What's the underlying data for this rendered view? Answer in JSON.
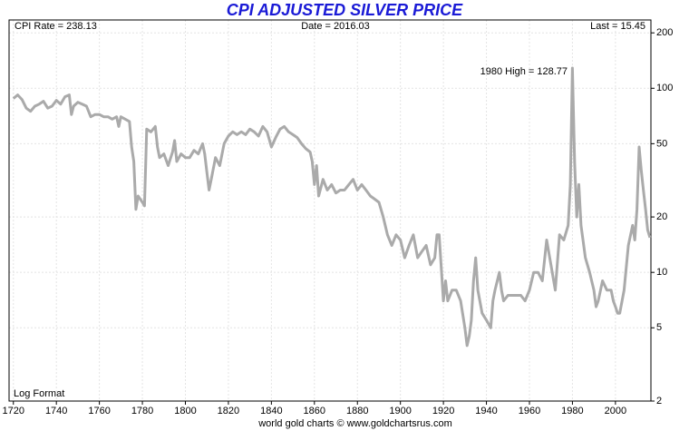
{
  "chart_data": {
    "type": "line",
    "title": "CPI ADJUSTED SILVER PRICE",
    "annotations": [
      "CPI Rate = 238.13",
      "Date = 2016.03",
      "Last = 15.45",
      "1980 High = 128.77",
      "Log Format",
      "world gold charts © www.goldchartsrus.com"
    ],
    "log_scale": true,
    "grid": true,
    "xlim": [
      1718,
      2016.5
    ],
    "xticks": [
      1720,
      1740,
      1760,
      1780,
      1800,
      1820,
      1840,
      1860,
      1880,
      1900,
      1920,
      1940,
      1960,
      1980,
      2000
    ],
    "ylim": [
      2,
      235
    ],
    "yticks": [
      2,
      5,
      10,
      20,
      50,
      100,
      200
    ],
    "series": [
      {
        "color": "#aaaaaa",
        "x": [
          1720,
          1722,
          1724,
          1726,
          1728,
          1730,
          1732,
          1734,
          1736,
          1738,
          1740,
          1742,
          1744,
          1746,
          1747,
          1748,
          1750,
          1752,
          1754,
          1756,
          1758,
          1760,
          1762,
          1764,
          1766,
          1768,
          1769,
          1770,
          1772,
          1774,
          1775,
          1776,
          1777,
          1778,
          1780,
          1781,
          1782,
          1784,
          1786,
          1787,
          1788,
          1790,
          1792,
          1794,
          1795,
          1796,
          1798,
          1800,
          1802,
          1804,
          1806,
          1808,
          1809,
          1810,
          1811,
          1812,
          1814,
          1816,
          1818,
          1820,
          1822,
          1824,
          1826,
          1828,
          1830,
          1832,
          1834,
          1836,
          1838,
          1840,
          1842,
          1844,
          1846,
          1848,
          1850,
          1852,
          1854,
          1856,
          1858,
          1859,
          1860,
          1861,
          1862,
          1864,
          1866,
          1868,
          1870,
          1872,
          1874,
          1876,
          1878,
          1880,
          1882,
          1884,
          1886,
          1888,
          1890,
          1892,
          1894,
          1896,
          1898,
          1900,
          1902,
          1904,
          1906,
          1908,
          1910,
          1912,
          1914,
          1916,
          1917,
          1918,
          1920,
          1921,
          1922,
          1924,
          1926,
          1928,
          1930,
          1931,
          1932,
          1933,
          1934,
          1935,
          1936,
          1938,
          1940,
          1942,
          1943,
          1944,
          1946,
          1947,
          1948,
          1950,
          1952,
          1954,
          1956,
          1958,
          1960,
          1962,
          1964,
          1966,
          1968,
          1970,
          1972,
          1974,
          1976,
          1978,
          1979,
          1980,
          1981,
          1982,
          1983,
          1984,
          1986,
          1988,
          1990,
          1991,
          1992,
          1994,
          1996,
          1998,
          1999,
          2000,
          2001,
          2002,
          2004,
          2006,
          2008,
          2009,
          2010,
          2011,
          2012,
          2013,
          2014,
          2015,
          2016.03
        ],
        "values": [
          88,
          92,
          87,
          78,
          75,
          80,
          82,
          85,
          78,
          80,
          86,
          82,
          90,
          92,
          72,
          80,
          84,
          82,
          80,
          70,
          72,
          72,
          70,
          70,
          68,
          70,
          62,
          70,
          68,
          66,
          48,
          40,
          22,
          26,
          24,
          23,
          60,
          58,
          62,
          48,
          42,
          44,
          38,
          45,
          52,
          40,
          44,
          42,
          42,
          46,
          44,
          50,
          44,
          35,
          28,
          32,
          42,
          38,
          50,
          55,
          58,
          56,
          58,
          56,
          60,
          58,
          55,
          62,
          58,
          48,
          54,
          60,
          62,
          58,
          56,
          54,
          50,
          47,
          45,
          40,
          30,
          38,
          26,
          32,
          28,
          30,
          27,
          28,
          28,
          30,
          32,
          28,
          30,
          28,
          26,
          25,
          24,
          20,
          16,
          14,
          16,
          15,
          12,
          14,
          16,
          12,
          13,
          14,
          11,
          12,
          16,
          16,
          7,
          9,
          7,
          8,
          8,
          7,
          5,
          4,
          4.5,
          5.5,
          9,
          12,
          8,
          6,
          5.5,
          5,
          7,
          8,
          10,
          8,
          7,
          7.5,
          7.5,
          7.5,
          7.5,
          7,
          8,
          10,
          10,
          9,
          15,
          11,
          8,
          16,
          15,
          18,
          30,
          128.77,
          40,
          20,
          30,
          18,
          12,
          10,
          8,
          6.5,
          7,
          9,
          8,
          8,
          7,
          6.5,
          6,
          6,
          8,
          14,
          18,
          15,
          22,
          48,
          36,
          28,
          22,
          17,
          15.45
        ]
      }
    ]
  }
}
